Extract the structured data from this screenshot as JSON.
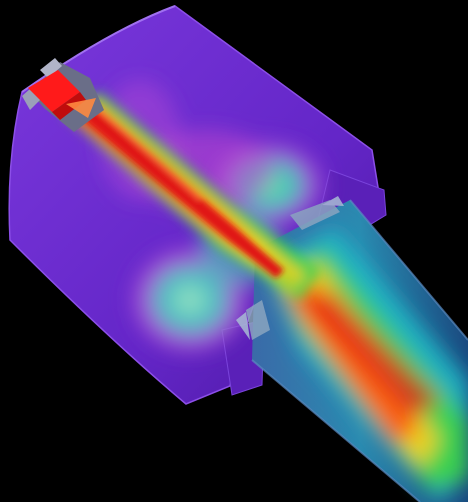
{
  "scene": {
    "subject": "cfd-flow-visualization",
    "background_color": "#000000",
    "colors": {
      "housing": "#6a2ad0",
      "housing_edge": "#8c4fe8",
      "jet_core": "#e01818",
      "jet_hot": "#ff5a10",
      "jet_warm": "#f2d21e",
      "jet_mid": "#3cd24a",
      "jet_cool": "#1cb8c8",
      "plume_magenta": "#d040d8",
      "inlet_red": "#ff1a1a",
      "inlet_collar": "#9aa0b8"
    }
  }
}
